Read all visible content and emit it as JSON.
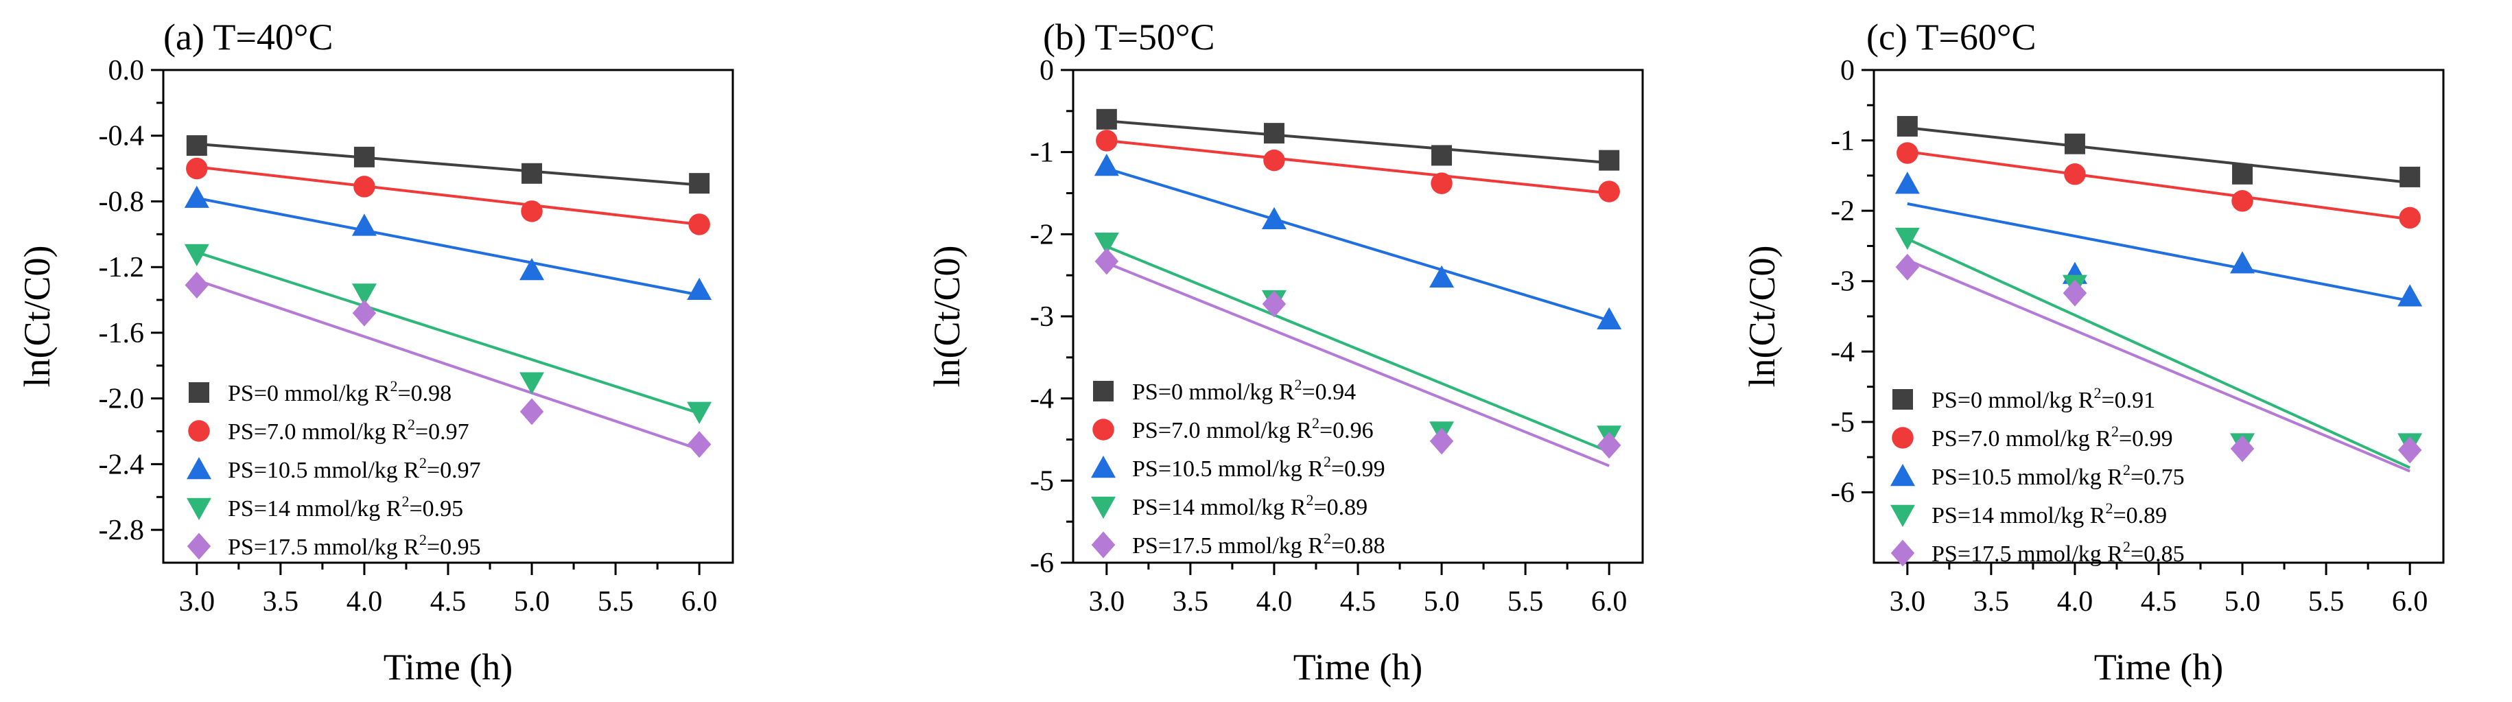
{
  "figure": {
    "charts": [
      {
        "panel": "a",
        "title": "(a) T=40°C",
        "xlabel": "Time (h)",
        "ylabel": "ln(Ct/C0)",
        "x_ticks": [
          "3.0",
          "3.5",
          "4.0",
          "4.5",
          "5.0",
          "5.5",
          "6.0"
        ],
        "y_ticks": [
          "0.0",
          "-0.4",
          "-0.8",
          "-1.2",
          "-1.6",
          "-2.0",
          "-2.4",
          "-2.8"
        ]
      },
      {
        "panel": "b",
        "title": "(b) T=50°C",
        "xlabel": "Time (h)",
        "ylabel": "ln(Ct/C0)",
        "x_ticks": [
          "3.0",
          "3.5",
          "4.0",
          "4.5",
          "5.0",
          "5.5",
          "6.0"
        ],
        "y_ticks": [
          "0",
          "-1",
          "-2",
          "-3",
          "-4",
          "-5",
          "-6"
        ]
      },
      {
        "panel": "c",
        "title": "(c) T=60°C",
        "xlabel": "Time (h)",
        "ylabel": "ln(Ct/C0)",
        "x_ticks": [
          "3.0",
          "3.5",
          "4.0",
          "4.5",
          "5.0",
          "5.5",
          "6.0"
        ],
        "y_ticks": [
          "0",
          "-1",
          "-2",
          "-3",
          "-4",
          "-5",
          "-6"
        ]
      }
    ]
  },
  "chart_data": [
    {
      "type": "scatter",
      "title": "(a) T=40°C",
      "xlabel": "Time (h)",
      "ylabel": "ln(Ct/C0)",
      "xlim": [
        2.8,
        6.2
      ],
      "ylim": [
        -3.0,
        0.0
      ],
      "x": [
        3.0,
        4.0,
        5.0,
        6.0
      ],
      "legend_position": "bottom-left",
      "series": [
        {
          "label": "PS=0 mmol/kg R",
          "r2": "=0.98",
          "color": "#404040",
          "marker": "square",
          "values": [
            -0.46,
            -0.53,
            -0.63,
            -0.69
          ],
          "fit": [
            -0.45,
            -0.7
          ]
        },
        {
          "label": "PS=7.0 mmol/kg R",
          "r2": "=0.97",
          "color": "#f03a3a",
          "marker": "circle",
          "values": [
            -0.6,
            -0.71,
            -0.86,
            -0.94
          ],
          "fit": [
            -0.59,
            -0.94
          ]
        },
        {
          "label": "PS=10.5 mmol/kg R",
          "r2": "=0.97",
          "color": "#1f6fe0",
          "marker": "triangle-up",
          "values": [
            -0.78,
            -0.95,
            -1.22,
            -1.34
          ],
          "fit": [
            -0.78,
            -1.37
          ]
        },
        {
          "label": "PS=14 mmol/kg R",
          "r2": "=0.95",
          "color": "#2db87a",
          "marker": "triangle-down",
          "values": [
            -1.12,
            -1.36,
            -1.9,
            -2.08
          ],
          "fit": [
            -1.11,
            -2.09
          ]
        },
        {
          "label": "PS=17.5 mmol/kg R",
          "r2": "=0.95",
          "color": "#b57ad6",
          "marker": "diamond",
          "values": [
            -1.31,
            -1.48,
            -2.08,
            -2.28
          ],
          "fit": [
            -1.28,
            -2.31
          ]
        }
      ]
    },
    {
      "type": "scatter",
      "title": "(b) T=50°C",
      "xlabel": "Time (h)",
      "ylabel": "ln(Ct/C0)",
      "xlim": [
        2.8,
        6.2
      ],
      "ylim": [
        -6.0,
        0.0
      ],
      "x": [
        3.0,
        4.0,
        5.0,
        6.0
      ],
      "legend_position": "bottom-left",
      "series": [
        {
          "label": "PS=0 mmol/kg R",
          "r2": "=0.94",
          "color": "#404040",
          "marker": "square",
          "values": [
            -0.6,
            -0.77,
            -1.04,
            -1.1
          ],
          "fit": [
            -0.62,
            -1.13
          ]
        },
        {
          "label": "PS=7.0 mmol/kg R",
          "r2": "=0.96",
          "color": "#f03a3a",
          "marker": "circle",
          "values": [
            -0.86,
            -1.1,
            -1.38,
            -1.48
          ],
          "fit": [
            -0.86,
            -1.5
          ]
        },
        {
          "label": "PS=10.5 mmol/kg R",
          "r2": "=0.99",
          "color": "#1f6fe0",
          "marker": "triangle-up",
          "values": [
            -1.17,
            -1.82,
            -2.53,
            -3.04
          ],
          "fit": [
            -1.2,
            -3.05
          ]
        },
        {
          "label": "PS=14 mmol/kg R",
          "r2": "=0.89",
          "color": "#2db87a",
          "marker": "triangle-down",
          "values": [
            -2.1,
            -2.8,
            -4.4,
            -4.45
          ],
          "fit": [
            -2.15,
            -4.65
          ]
        },
        {
          "label": "PS=17.5 mmol/kg R",
          "r2": "=0.88",
          "color": "#b57ad6",
          "marker": "diamond",
          "values": [
            -2.33,
            -2.85,
            -4.52,
            -4.57
          ],
          "fit": [
            -2.35,
            -4.82
          ]
        }
      ]
    },
    {
      "type": "scatter",
      "title": "(c) T=60°C",
      "xlabel": "Time (h)",
      "ylabel": "ln(Ct/C0)",
      "xlim": [
        2.8,
        6.2
      ],
      "ylim": [
        -7.0,
        0.0
      ],
      "x": [
        3.0,
        4.0,
        5.0,
        6.0
      ],
      "legend_position": "bottom-left",
      "series": [
        {
          "label": "PS=0 mmol/kg R",
          "r2": "=0.91",
          "color": "#404040",
          "marker": "square",
          "values": [
            -0.8,
            -1.05,
            -1.48,
            -1.52
          ],
          "fit": [
            -0.82,
            -1.6
          ]
        },
        {
          "label": "PS=7.0 mmol/kg R",
          "r2": "=0.99",
          "color": "#f03a3a",
          "marker": "circle",
          "values": [
            -1.18,
            -1.48,
            -1.86,
            -2.1
          ],
          "fit": [
            -1.16,
            -2.12
          ]
        },
        {
          "label": "PS=10.5 mmol/kg R",
          "r2": "=0.75",
          "color": "#1f6fe0",
          "marker": "triangle-up",
          "values": [
            -1.62,
            -2.9,
            -2.75,
            -3.22
          ],
          "fit": [
            -1.9,
            -3.28
          ]
        },
        {
          "label": "PS=14 mmol/kg R",
          "r2": "=0.89",
          "color": "#2db87a",
          "marker": "triangle-down",
          "values": [
            -2.38,
            -3.05,
            -5.3,
            -5.3
          ],
          "fit": [
            -2.4,
            -5.65
          ]
        },
        {
          "label": "PS=17.5 mmol/kg R",
          "r2": "=0.85",
          "color": "#b57ad6",
          "marker": "diamond",
          "values": [
            -2.8,
            -3.17,
            -5.38,
            -5.4
          ],
          "fit": [
            -2.7,
            -5.7
          ]
        }
      ]
    }
  ]
}
